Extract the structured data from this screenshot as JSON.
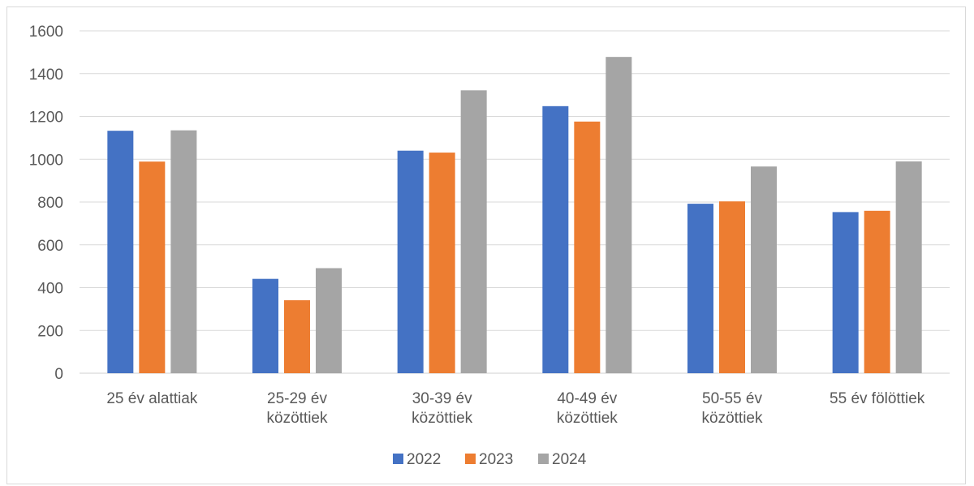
{
  "chart_data": {
    "type": "bar",
    "categories": [
      [
        "25 év alattiak"
      ],
      [
        "25-29 év",
        "közöttiek"
      ],
      [
        "30-39 év",
        "közöttiek"
      ],
      [
        "40-49 év",
        "közöttiek"
      ],
      [
        "50-55 év",
        "közöttiek"
      ],
      [
        "55 év fölöttiek"
      ]
    ],
    "series": [
      {
        "name": "2022",
        "color": "#4472c4",
        "values": [
          1133,
          441,
          1040,
          1248,
          792,
          753
        ]
      },
      {
        "name": "2023",
        "color": "#ed7d31",
        "values": [
          989,
          341,
          1031,
          1176,
          803,
          759
        ]
      },
      {
        "name": "2024",
        "color": "#a5a5a5",
        "values": [
          1135,
          491,
          1322,
          1478,
          966,
          990
        ]
      }
    ],
    "ylim": [
      0,
      1600
    ],
    "yticks": [
      0,
      200,
      400,
      600,
      800,
      1000,
      1200,
      1400,
      1600
    ],
    "grid": true,
    "legend_position": "bottom"
  }
}
